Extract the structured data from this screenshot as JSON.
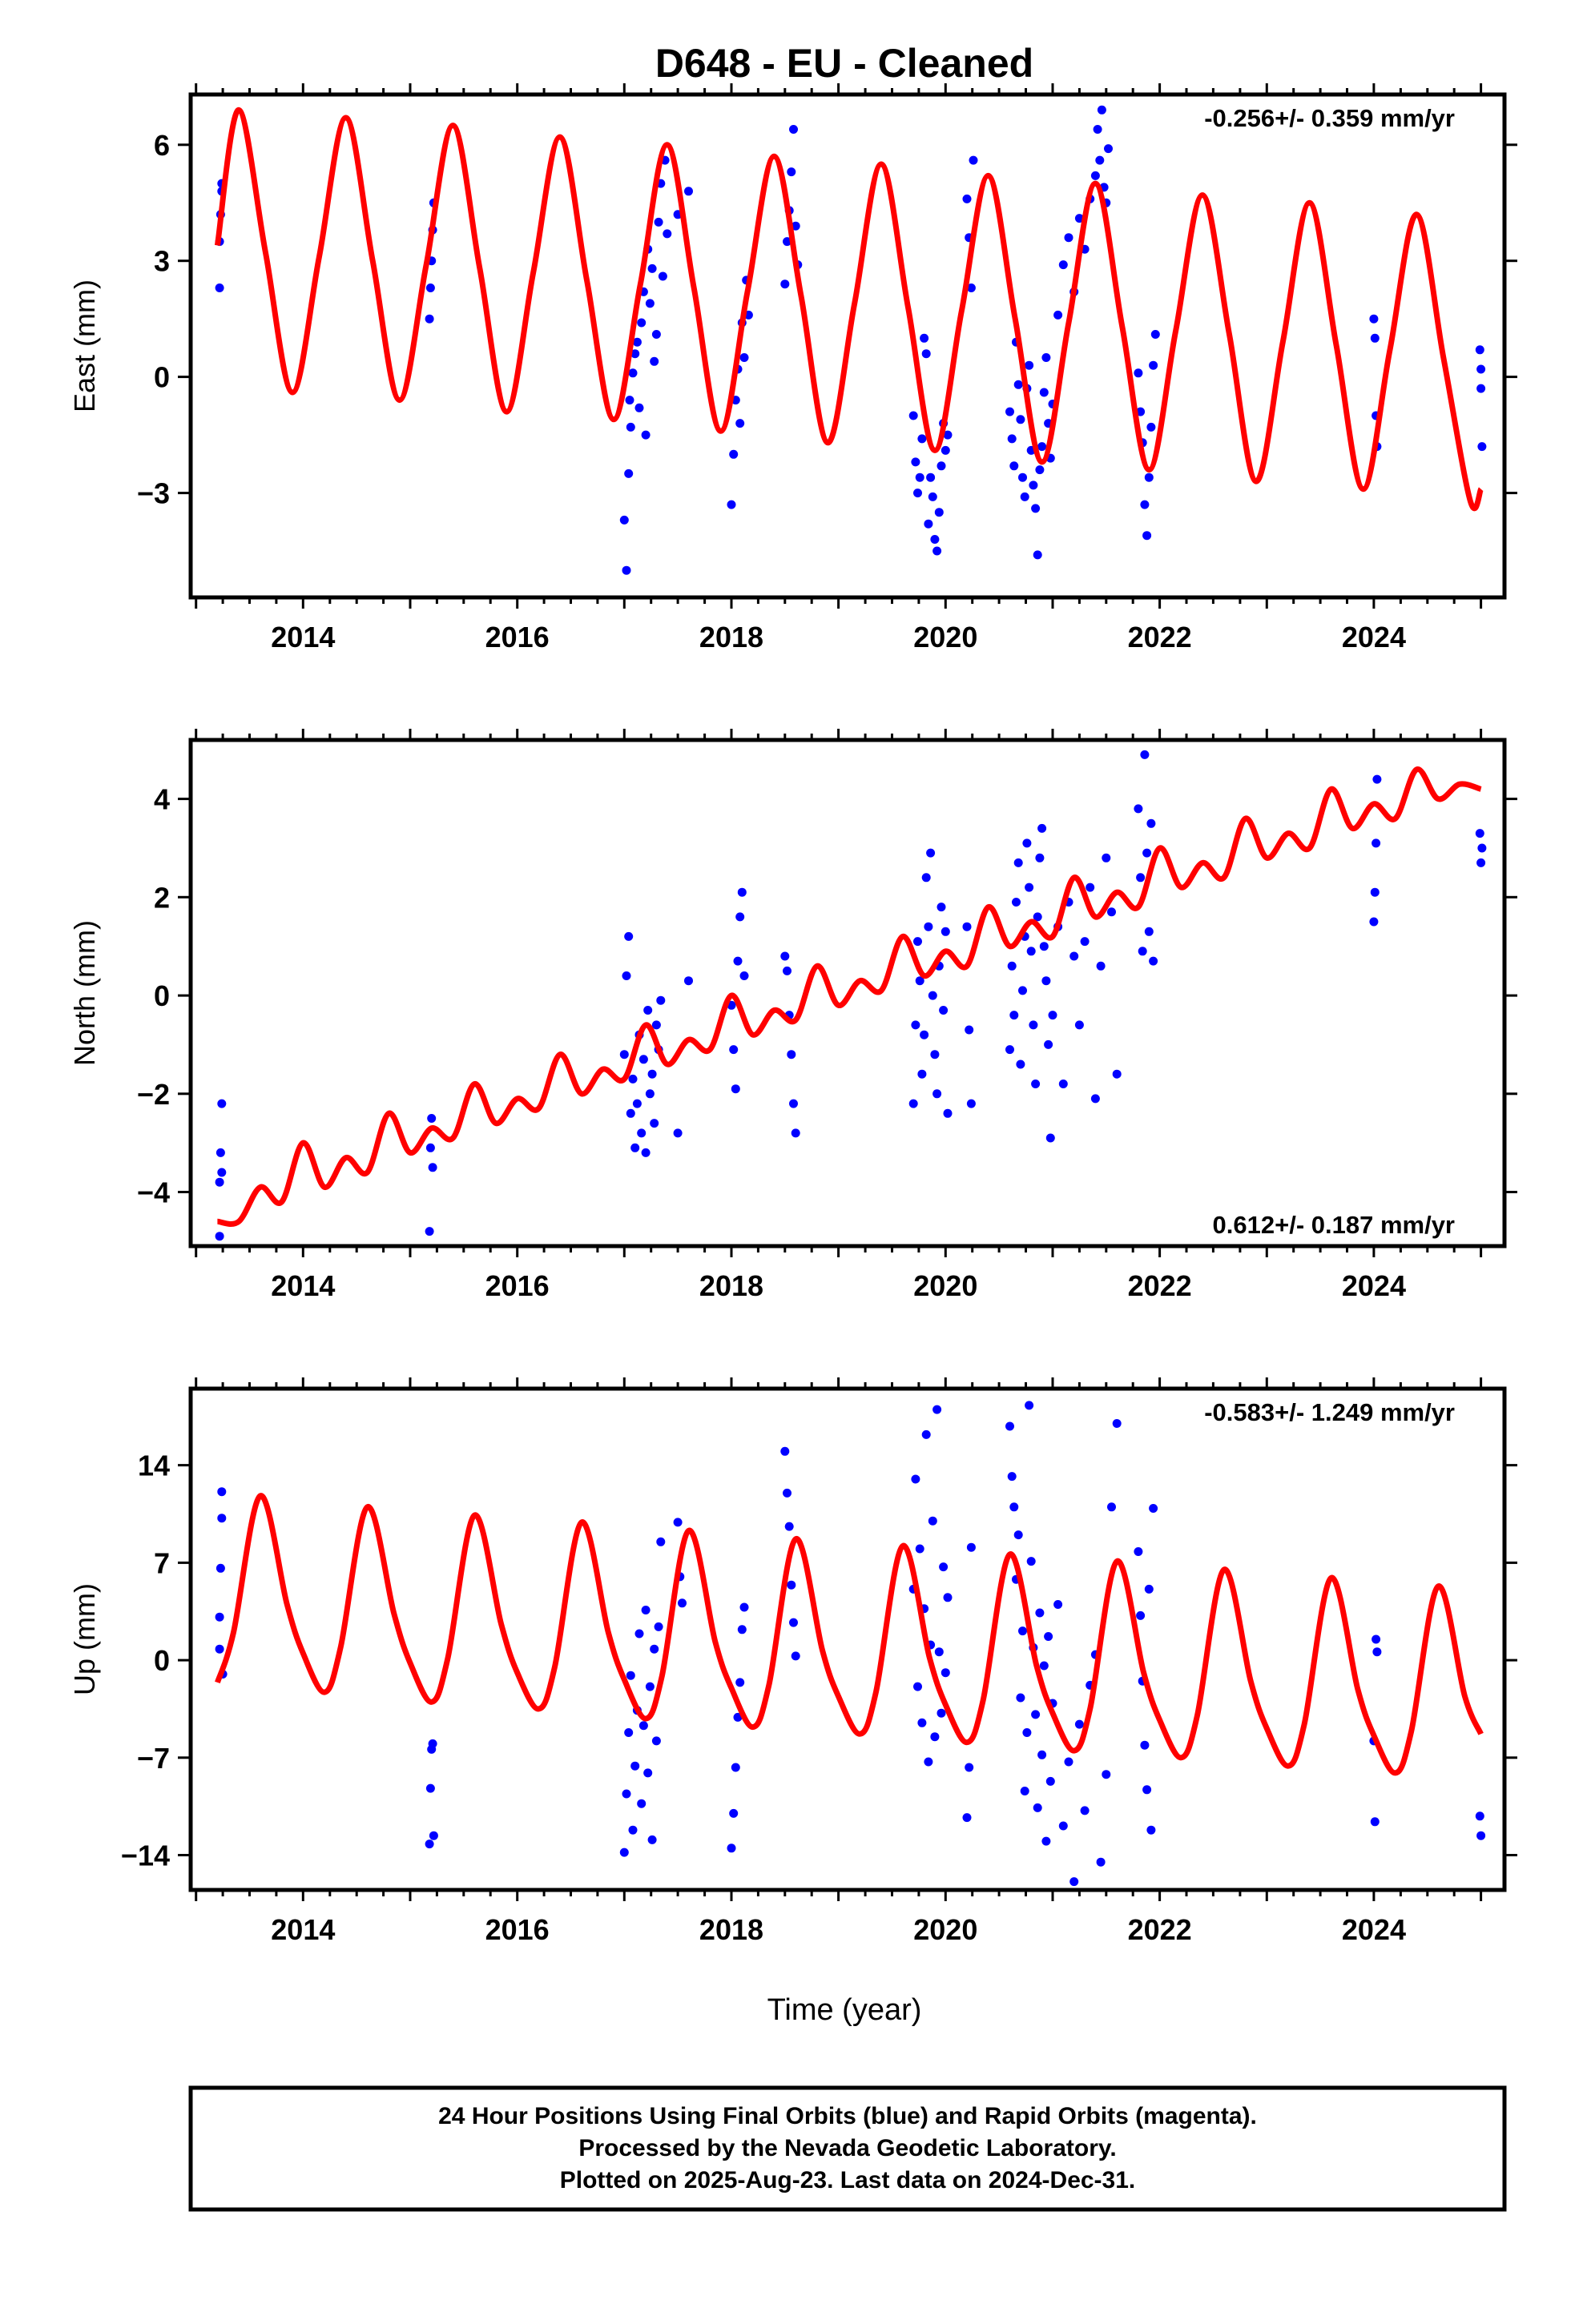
{
  "title": "D648  - EU - Cleaned",
  "footer": {
    "lines": [
      "24 Hour Positions Using Final Orbits (blue) and Rapid Orbits (magenta).",
      "Processed by the Nevada Geodetic Laboratory.",
      "Plotted on 2025-Aug-23. Last data on 2024-Dec-31."
    ]
  },
  "colors": {
    "points": "#0000ff",
    "model": "#ff0000",
    "frame": "#000000"
  },
  "chart_data": [
    {
      "type": "scatter",
      "ylabel": "East (mm)",
      "xlabel": "",
      "xlim": [
        2012.95,
        2025.22
      ],
      "ylim": [
        -5.7,
        7.3
      ],
      "x_ticks": [
        2014,
        2016,
        2018,
        2020,
        2022,
        2024
      ],
      "y_ticks": [
        -3,
        0,
        3,
        6
      ],
      "rate_label": "-0.256+/- 0.359 mm/yr",
      "rate_position": "top-right",
      "model": {
        "name": "fit",
        "x": [
          2013.2,
          2013.4,
          2013.65,
          2013.9,
          2014.15,
          2014.4,
          2014.65,
          2014.9,
          2015.15,
          2015.4,
          2015.65,
          2015.9,
          2016.15,
          2016.4,
          2016.65,
          2016.9,
          2017.15,
          2017.4,
          2017.65,
          2017.9,
          2018.15,
          2018.4,
          2018.65,
          2018.9,
          2019.15,
          2019.4,
          2019.65,
          2019.9,
          2020.15,
          2020.4,
          2020.65,
          2020.9,
          2021.15,
          2021.4,
          2021.65,
          2021.9,
          2022.15,
          2022.4,
          2022.65,
          2022.9,
          2023.15,
          2023.4,
          2023.65,
          2023.9,
          2024.15,
          2024.4,
          2024.65,
          2024.9,
          2025.0
        ],
        "y": [
          3.4,
          6.9,
          3.2,
          -0.4,
          3.1,
          6.7,
          3.0,
          -0.6,
          2.9,
          6.5,
          2.8,
          -0.9,
          2.7,
          6.2,
          2.5,
          -1.1,
          2.4,
          6.0,
          2.3,
          -1.4,
          2.2,
          5.7,
          2.1,
          -1.7,
          1.9,
          5.5,
          1.8,
          -1.9,
          1.7,
          5.2,
          1.5,
          -2.2,
          1.4,
          5.0,
          1.3,
          -2.4,
          1.2,
          4.7,
          1.1,
          -2.7,
          0.9,
          4.5,
          0.8,
          -2.9,
          0.7,
          4.2,
          0.5,
          -3.2,
          -2.9
        ]
      },
      "points": {
        "name": "Final Orbits",
        "x": [
          2013.22,
          2013.22,
          2013.23,
          2013.24,
          2013.24,
          2015.18,
          2015.19,
          2015.2,
          2015.21,
          2015.22,
          2017.0,
          2017.02,
          2017.04,
          2017.05,
          2017.06,
          2017.08,
          2017.1,
          2017.12,
          2017.14,
          2017.16,
          2017.18,
          2017.2,
          2017.22,
          2017.24,
          2017.26,
          2017.28,
          2017.3,
          2017.32,
          2017.34,
          2017.36,
          2017.38,
          2017.4,
          2017.5,
          2017.6,
          2018.0,
          2018.02,
          2018.04,
          2018.06,
          2018.08,
          2018.1,
          2018.12,
          2018.14,
          2018.16,
          2018.5,
          2018.52,
          2018.54,
          2018.56,
          2018.58,
          2018.6,
          2018.62,
          2019.7,
          2019.72,
          2019.74,
          2019.76,
          2019.78,
          2019.8,
          2019.82,
          2019.84,
          2019.86,
          2019.88,
          2019.9,
          2019.92,
          2019.94,
          2019.96,
          2019.98,
          2020.0,
          2020.02,
          2020.2,
          2020.22,
          2020.24,
          2020.26,
          2020.6,
          2020.62,
          2020.64,
          2020.66,
          2020.68,
          2020.7,
          2020.72,
          2020.74,
          2020.76,
          2020.78,
          2020.8,
          2020.82,
          2020.84,
          2020.86,
          2020.88,
          2020.9,
          2020.92,
          2020.94,
          2020.96,
          2020.98,
          2021.0,
          2021.05,
          2021.1,
          2021.15,
          2021.2,
          2021.25,
          2021.3,
          2021.35,
          2021.4,
          2021.42,
          2021.44,
          2021.46,
          2021.48,
          2021.5,
          2021.52,
          2021.8,
          2021.82,
          2021.84,
          2021.86,
          2021.88,
          2021.9,
          2021.92,
          2021.94,
          2021.96,
          2024.0,
          2024.01,
          2024.02,
          2024.03,
          2024.99,
          2025.0,
          2025.0,
          2025.01
        ],
        "y": [
          2.3,
          3.5,
          4.2,
          5.0,
          4.8,
          1.5,
          2.3,
          3.0,
          3.8,
          4.5,
          -3.7,
          -5.0,
          -2.5,
          -0.6,
          -1.3,
          0.1,
          0.6,
          0.9,
          -0.8,
          1.4,
          2.2,
          -1.5,
          3.3,
          1.9,
          2.8,
          0.4,
          1.1,
          4.0,
          5.0,
          2.6,
          5.6,
          3.7,
          4.2,
          4.8,
          -3.3,
          -2.0,
          -0.6,
          0.2,
          -1.2,
          1.4,
          0.5,
          2.5,
          1.6,
          2.4,
          3.5,
          4.3,
          5.3,
          6.4,
          3.9,
          2.9,
          -1.0,
          -2.2,
          -3.0,
          -2.6,
          -1.6,
          1.0,
          0.6,
          -3.8,
          -2.6,
          -3.1,
          -4.2,
          -4.5,
          -3.5,
          -2.3,
          -1.2,
          -1.9,
          -1.5,
          4.6,
          3.6,
          2.3,
          5.6,
          -0.9,
          -1.6,
          -2.3,
          0.9,
          -0.2,
          -1.1,
          -2.6,
          -3.1,
          -0.3,
          0.3,
          -1.9,
          -2.8,
          -3.4,
          -4.6,
          -2.4,
          -1.8,
          -0.4,
          0.5,
          -1.2,
          -2.1,
          -0.7,
          1.6,
          2.9,
          3.6,
          2.2,
          4.1,
          3.3,
          4.6,
          5.2,
          6.4,
          5.6,
          6.9,
          4.9,
          4.5,
          5.9,
          0.1,
          -0.9,
          -1.7,
          -3.3,
          -4.1,
          -2.6,
          -1.3,
          0.3,
          1.1,
          1.5,
          1.0,
          -1.0,
          -1.8,
          0.7,
          0.2,
          -0.3,
          -1.8
        ]
      }
    },
    {
      "type": "scatter",
      "ylabel": "North (mm)",
      "xlabel": "",
      "xlim": [
        2012.95,
        2025.22
      ],
      "ylim": [
        -5.1,
        5.2
      ],
      "x_ticks": [
        2014,
        2016,
        2018,
        2020,
        2022,
        2024
      ],
      "y_ticks": [
        -4,
        -2,
        0,
        2,
        4
      ],
      "rate_label": "0.612+/- 0.187 mm/yr",
      "rate_position": "bottom-right",
      "model": {
        "name": "fit",
        "x": [
          2013.2,
          2013.4,
          2013.6,
          2013.8,
          2014.0,
          2014.2,
          2014.4,
          2014.6,
          2014.8,
          2015.0,
          2015.2,
          2015.4,
          2015.6,
          2015.8,
          2016.0,
          2016.2,
          2016.4,
          2016.6,
          2016.8,
          2017.0,
          2017.2,
          2017.4,
          2017.6,
          2017.8,
          2018.0,
          2018.2,
          2018.4,
          2018.6,
          2018.8,
          2019.0,
          2019.2,
          2019.4,
          2019.6,
          2019.8,
          2020.0,
          2020.2,
          2020.4,
          2020.6,
          2020.8,
          2021.0,
          2021.2,
          2021.4,
          2021.6,
          2021.8,
          2022.0,
          2022.2,
          2022.4,
          2022.6,
          2022.8,
          2023.0,
          2023.2,
          2023.4,
          2023.6,
          2023.8,
          2024.0,
          2024.2,
          2024.4,
          2024.6,
          2024.8,
          2025.0
        ],
        "y": [
          -4.6,
          -4.6,
          -3.9,
          -4.2,
          -3.0,
          -3.9,
          -3.3,
          -3.6,
          -2.4,
          -3.2,
          -2.7,
          -2.9,
          -1.8,
          -2.6,
          -2.1,
          -2.3,
          -1.2,
          -2.0,
          -1.5,
          -1.7,
          -0.6,
          -1.4,
          -0.9,
          -1.1,
          0.0,
          -0.8,
          -0.3,
          -0.5,
          0.6,
          -0.2,
          0.3,
          0.1,
          1.2,
          0.4,
          0.9,
          0.6,
          1.8,
          1.0,
          1.5,
          1.2,
          2.4,
          1.6,
          2.1,
          1.8,
          3.0,
          2.2,
          2.7,
          2.4,
          3.6,
          2.8,
          3.3,
          3.0,
          4.2,
          3.4,
          3.9,
          3.6,
          4.6,
          4.0,
          4.3,
          4.2
        ]
      },
      "points": {
        "name": "Final Orbits",
        "x": [
          2013.22,
          2013.22,
          2013.23,
          2013.24,
          2013.24,
          2015.18,
          2015.19,
          2015.2,
          2015.21,
          2017.0,
          2017.02,
          2017.04,
          2017.06,
          2017.08,
          2017.1,
          2017.12,
          2017.14,
          2017.16,
          2017.18,
          2017.2,
          2017.22,
          2017.24,
          2017.26,
          2017.28,
          2017.3,
          2017.32,
          2017.34,
          2017.5,
          2017.6,
          2018.0,
          2018.02,
          2018.04,
          2018.06,
          2018.08,
          2018.1,
          2018.12,
          2018.5,
          2018.52,
          2018.54,
          2018.56,
          2018.58,
          2018.6,
          2019.7,
          2019.72,
          2019.74,
          2019.76,
          2019.78,
          2019.8,
          2019.82,
          2019.84,
          2019.86,
          2019.88,
          2019.9,
          2019.92,
          2019.94,
          2019.96,
          2019.98,
          2020.0,
          2020.02,
          2020.2,
          2020.22,
          2020.24,
          2020.6,
          2020.62,
          2020.64,
          2020.66,
          2020.68,
          2020.7,
          2020.72,
          2020.74,
          2020.76,
          2020.78,
          2020.8,
          2020.82,
          2020.84,
          2020.86,
          2020.88,
          2020.9,
          2020.92,
          2020.94,
          2020.96,
          2020.98,
          2021.0,
          2021.05,
          2021.1,
          2021.15,
          2021.2,
          2021.25,
          2021.3,
          2021.35,
          2021.4,
          2021.45,
          2021.5,
          2021.55,
          2021.6,
          2021.8,
          2021.82,
          2021.84,
          2021.86,
          2021.88,
          2021.9,
          2021.92,
          2021.94,
          2024.0,
          2024.01,
          2024.02,
          2024.03,
          2024.99,
          2025.0,
          2025.01
        ],
        "y": [
          -4.9,
          -3.8,
          -3.2,
          -2.2,
          -3.6,
          -4.8,
          -3.1,
          -2.5,
          -3.5,
          -1.2,
          0.4,
          1.2,
          -2.4,
          -1.7,
          -3.1,
          -2.2,
          -0.8,
          -2.8,
          -1.3,
          -3.2,
          -0.3,
          -2.0,
          -1.6,
          -2.6,
          -0.6,
          -1.1,
          -0.1,
          -2.8,
          0.3,
          -0.2,
          -1.1,
          -1.9,
          0.7,
          1.6,
          2.1,
          0.4,
          0.8,
          0.5,
          -0.4,
          -1.2,
          -2.2,
          -2.8,
          -2.2,
          -0.6,
          1.1,
          0.3,
          -1.6,
          -0.8,
          2.4,
          1.4,
          2.9,
          0.0,
          -1.2,
          -2.0,
          0.6,
          1.8,
          -0.3,
          1.3,
          -2.4,
          1.4,
          -0.7,
          -2.2,
          -1.1,
          0.6,
          -0.4,
          1.9,
          2.7,
          -1.4,
          0.1,
          1.2,
          3.1,
          2.2,
          0.9,
          -0.6,
          -1.8,
          1.6,
          2.8,
          3.4,
          1.0,
          0.3,
          -1.0,
          -2.9,
          -0.4,
          1.4,
          -1.8,
          1.9,
          0.8,
          -0.6,
          1.1,
          2.2,
          -2.1,
          0.6,
          2.8,
          1.7,
          -1.6,
          3.8,
          2.4,
          0.9,
          4.9,
          2.9,
          1.3,
          3.5,
          0.7,
          1.5,
          2.1,
          3.1,
          4.4,
          3.3,
          2.7,
          3.0
        ]
      }
    },
    {
      "type": "scatter",
      "ylabel": "Up (mm)",
      "xlabel": "Time (year)",
      "xlim": [
        2012.95,
        2025.22
      ],
      "ylim": [
        -16.5,
        19.5
      ],
      "x_ticks": [
        2014,
        2016,
        2018,
        2020,
        2022,
        2024
      ],
      "y_ticks": [
        -14,
        -7,
        0,
        7,
        14
      ],
      "rate_label": "-0.583+/- 1.249 mm/yr",
      "rate_position": "top-right",
      "model": {
        "name": "fit",
        "x": [
          2013.2,
          2013.35,
          2013.6,
          2013.85,
          2014.0,
          2014.2,
          2014.35,
          2014.6,
          2014.85,
          2015.0,
          2015.2,
          2015.35,
          2015.6,
          2015.85,
          2016.0,
          2016.2,
          2016.35,
          2016.6,
          2016.85,
          2017.0,
          2017.2,
          2017.35,
          2017.6,
          2017.85,
          2018.0,
          2018.2,
          2018.35,
          2018.6,
          2018.85,
          2019.0,
          2019.2,
          2019.35,
          2019.6,
          2019.85,
          2020.0,
          2020.2,
          2020.35,
          2020.6,
          2020.85,
          2021.0,
          2021.2,
          2021.35,
          2021.6,
          2021.85,
          2022.0,
          2022.2,
          2022.35,
          2022.6,
          2022.85,
          2023.0,
          2023.2,
          2023.35,
          2023.6,
          2023.85,
          2024.0,
          2024.2,
          2024.35,
          2024.6,
          2024.85,
          2025.0
        ],
        "y": [
          -1.6,
          2.0,
          11.8,
          4.0,
          0.5,
          -2.3,
          0.9,
          11.0,
          3.3,
          -0.2,
          -3.0,
          0.1,
          10.4,
          2.6,
          -0.9,
          -3.5,
          -0.5,
          9.9,
          2.0,
          -1.4,
          -4.2,
          -1.2,
          9.3,
          1.3,
          -2.0,
          -4.8,
          -1.8,
          8.7,
          0.7,
          -2.6,
          -5.3,
          -2.3,
          8.2,
          0.2,
          -3.2,
          -5.9,
          -2.9,
          7.6,
          -0.4,
          -3.8,
          -6.5,
          -3.5,
          7.1,
          -0.9,
          -4.3,
          -7.0,
          -4.0,
          6.5,
          -1.5,
          -4.9,
          -7.6,
          -4.6,
          5.9,
          -2.1,
          -5.4,
          -8.1,
          -5.1,
          5.3,
          -2.6,
          -5.3
        ]
      },
      "points": {
        "name": "Final Orbits",
        "x": [
          2013.22,
          2013.22,
          2013.23,
          2013.24,
          2013.24,
          2013.25,
          2015.18,
          2015.19,
          2015.2,
          2015.21,
          2015.22,
          2017.0,
          2017.02,
          2017.04,
          2017.06,
          2017.08,
          2017.1,
          2017.12,
          2017.14,
          2017.16,
          2017.18,
          2017.2,
          2017.22,
          2017.24,
          2017.26,
          2017.28,
          2017.3,
          2017.32,
          2017.34,
          2017.5,
          2017.52,
          2017.54,
          2018.0,
          2018.02,
          2018.04,
          2018.06,
          2018.08,
          2018.1,
          2018.12,
          2018.5,
          2018.52,
          2018.54,
          2018.56,
          2018.58,
          2018.6,
          2019.7,
          2019.72,
          2019.74,
          2019.76,
          2019.78,
          2019.8,
          2019.82,
          2019.84,
          2019.86,
          2019.88,
          2019.9,
          2019.92,
          2019.94,
          2019.96,
          2019.98,
          2020.0,
          2020.02,
          2020.2,
          2020.22,
          2020.24,
          2020.6,
          2020.62,
          2020.64,
          2020.66,
          2020.68,
          2020.7,
          2020.72,
          2020.74,
          2020.76,
          2020.78,
          2020.8,
          2020.82,
          2020.84,
          2020.86,
          2020.88,
          2020.9,
          2020.92,
          2020.94,
          2020.96,
          2020.98,
          2021.0,
          2021.05,
          2021.1,
          2021.15,
          2021.2,
          2021.25,
          2021.3,
          2021.35,
          2021.4,
          2021.45,
          2021.5,
          2021.55,
          2021.6,
          2021.8,
          2021.82,
          2021.84,
          2021.86,
          2021.88,
          2021.9,
          2021.92,
          2021.94,
          2024.0,
          2024.01,
          2024.02,
          2024.03,
          2024.99,
          2025.0
        ],
        "y": [
          0.8,
          3.1,
          6.6,
          10.2,
          12.1,
          -1.0,
          -13.2,
          -9.2,
          -6.4,
          -6.0,
          -12.6,
          -13.8,
          -9.6,
          -5.2,
          -1.1,
          -12.2,
          -7.6,
          -3.6,
          1.9,
          -10.3,
          -4.7,
          3.6,
          -8.1,
          -1.9,
          -12.9,
          0.8,
          -5.8,
          2.4,
          8.5,
          9.9,
          6.0,
          4.1,
          -13.5,
          -11.0,
          -7.7,
          -4.1,
          -1.6,
          2.2,
          3.8,
          15.0,
          12.0,
          9.6,
          5.4,
          2.7,
          0.3,
          5.1,
          13.0,
          -1.9,
          8.0,
          -4.5,
          3.7,
          16.2,
          -7.3,
          1.1,
          10.0,
          -5.5,
          18.0,
          0.6,
          -3.8,
          6.7,
          -0.9,
          4.5,
          -11.3,
          -7.7,
          8.1,
          16.8,
          13.2,
          11.0,
          5.8,
          9.0,
          -2.7,
          2.1,
          -9.4,
          -5.2,
          18.3,
          7.1,
          0.9,
          -3.9,
          -10.6,
          3.4,
          -6.8,
          -0.4,
          -13.0,
          1.7,
          -8.7,
          -3.1,
          4.0,
          -11.9,
          -7.3,
          -15.9,
          -4.6,
          -10.8,
          -1.8,
          0.4,
          -14.5,
          -8.2,
          11.0,
          17.0,
          7.8,
          3.2,
          -1.5,
          -6.1,
          -9.3,
          5.1,
          -12.2,
          10.9,
          -5.8,
          -11.6,
          1.5,
          0.6,
          -11.2,
          -12.6
        ]
      }
    }
  ]
}
